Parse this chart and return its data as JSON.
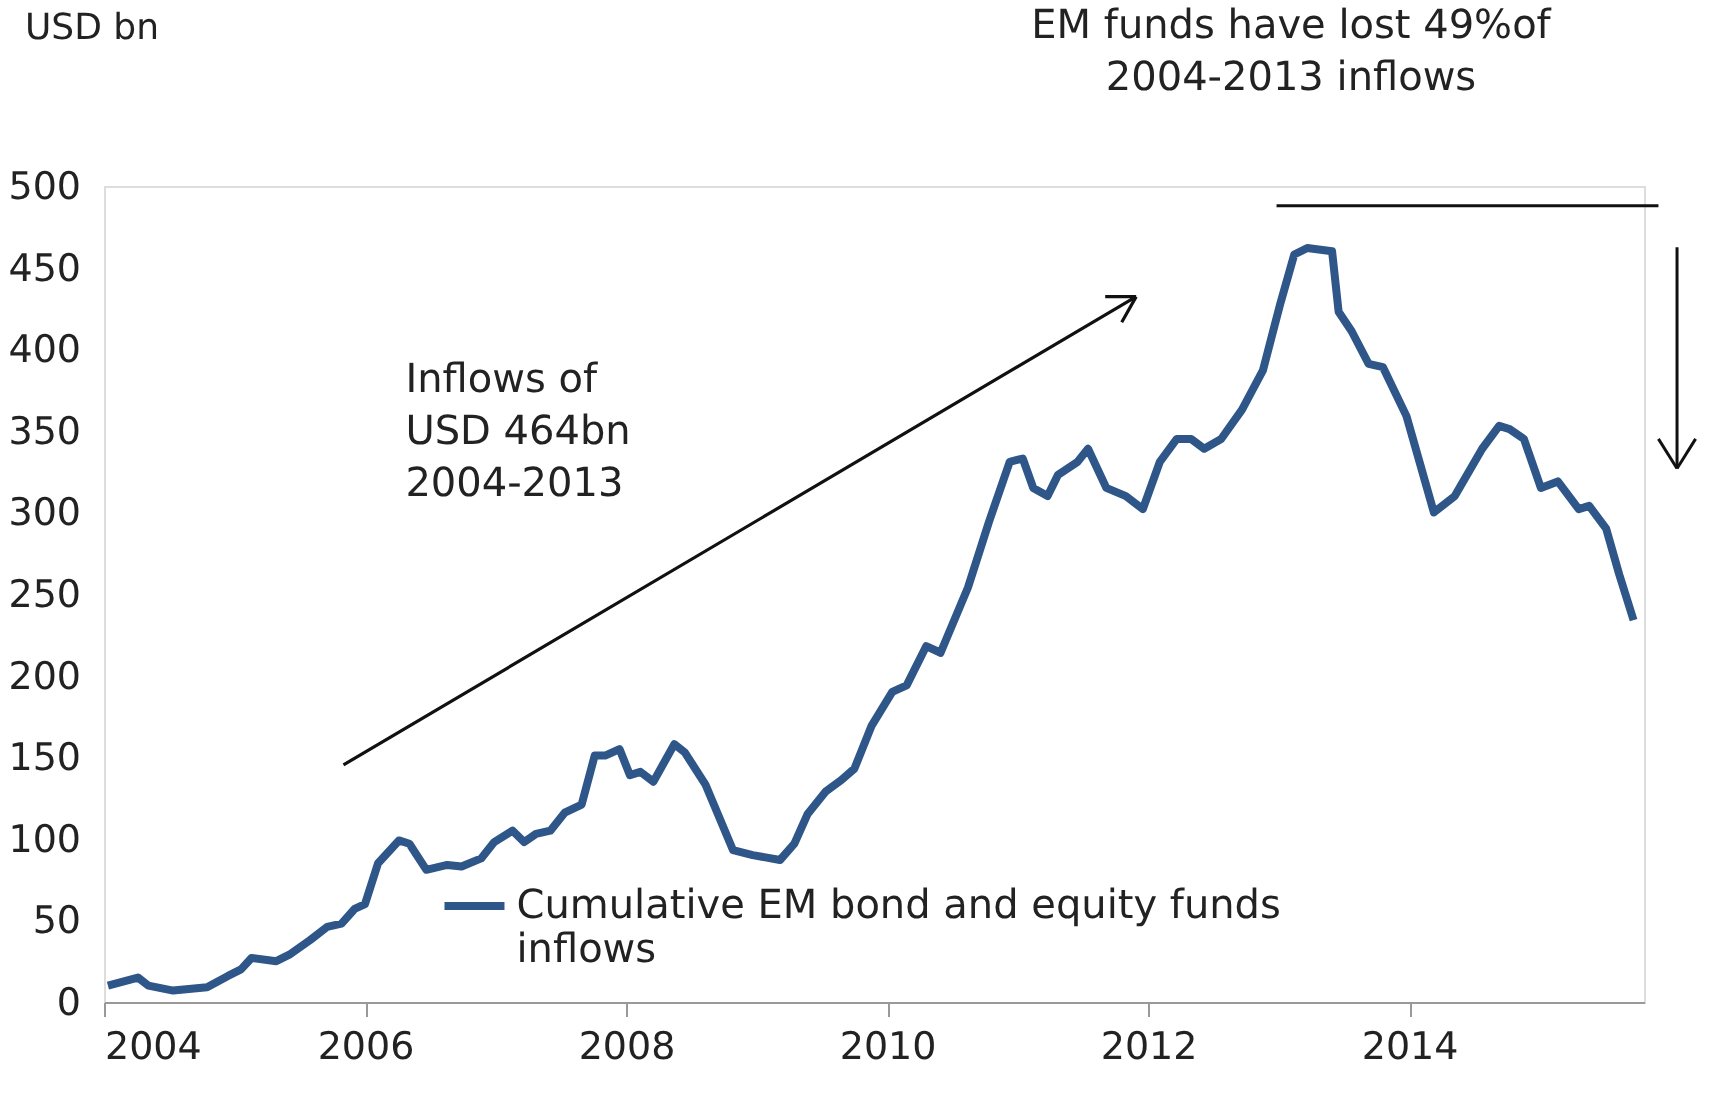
{
  "chart_data": {
    "type": "line",
    "ylabel": "USD bn",
    "xlim": [
      2004,
      2015.8
    ],
    "xticks": [
      2004,
      2006,
      2008,
      2010,
      2012,
      2014
    ],
    "ylim": [
      0,
      500
    ],
    "yticks": [
      0,
      50,
      100,
      150,
      200,
      250,
      300,
      350,
      400,
      450,
      500
    ],
    "grid": false,
    "legend": "bottom",
    "line_style": "solid",
    "marker": "none",
    "annotations": [
      "EM funds have lost 49%of\n2004-2013 inflows",
      "Inflows of\nUSD 464bn\n2004-2013"
    ],
    "series": [
      {
        "name": "Cumulative EM bond and equity funds inflows",
        "color": "#2f5689",
        "x": [
          2004.03,
          2004.26,
          2004.34,
          2004.53,
          2004.79,
          2004.95,
          2005.05,
          2005.13,
          2005.32,
          2005.42,
          2005.58,
          2005.71,
          2005.82,
          2005.92,
          2006.0,
          2006.1,
          2006.26,
          2006.34,
          2006.47,
          2006.63,
          2006.74,
          2006.89,
          2006.99,
          2007.13,
          2007.22,
          2007.31,
          2007.42,
          2007.53,
          2007.66,
          2007.76,
          2007.84,
          2007.95,
          2008.03,
          2008.11,
          2008.21,
          2008.37,
          2008.45,
          2008.61,
          2008.82,
          2008.97,
          2009.18,
          2009.29,
          2009.39,
          2009.53,
          2009.65,
          2009.75,
          2009.88,
          2010.04,
          2010.15,
          2010.3,
          2010.41,
          2010.62,
          2010.78,
          2010.94,
          2011.04,
          2011.12,
          2011.23,
          2011.31,
          2011.46,
          2011.54,
          2011.68,
          2011.83,
          2011.96,
          2012.09,
          2012.22,
          2012.33,
          2012.43,
          2012.56,
          2012.72,
          2012.88,
          2013.01,
          2013.12,
          2013.22,
          2013.41,
          2013.46,
          2013.56,
          2013.69,
          2013.8,
          2013.98,
          2014.19,
          2014.35,
          2014.56,
          2014.69,
          2014.77,
          2014.88,
          2015.01,
          2015.14,
          2015.3,
          2015.38,
          2015.51,
          2015.61,
          2015.72
        ],
        "values": [
          10,
          15,
          10,
          7,
          9,
          16,
          20,
          27,
          25,
          29,
          38,
          46,
          48,
          57,
          60,
          85,
          99,
          97,
          81,
          84,
          83,
          88,
          98,
          105,
          98,
          103,
          105,
          116,
          121,
          151,
          151,
          155,
          139,
          141,
          135,
          158,
          153,
          133,
          93,
          90,
          87,
          97,
          115,
          129,
          136,
          143,
          169,
          190,
          194,
          218,
          214,
          254,
          294,
          331,
          333,
          315,
          310,
          323,
          331,
          339,
          315,
          310,
          302,
          331,
          345,
          345,
          339,
          345,
          363,
          387,
          427,
          458,
          462,
          460,
          423,
          411,
          391,
          389,
          359,
          300,
          310,
          339,
          353,
          351,
          345,
          315,
          319,
          302,
          304,
          290,
          262,
          234
        ]
      }
    ]
  }
}
